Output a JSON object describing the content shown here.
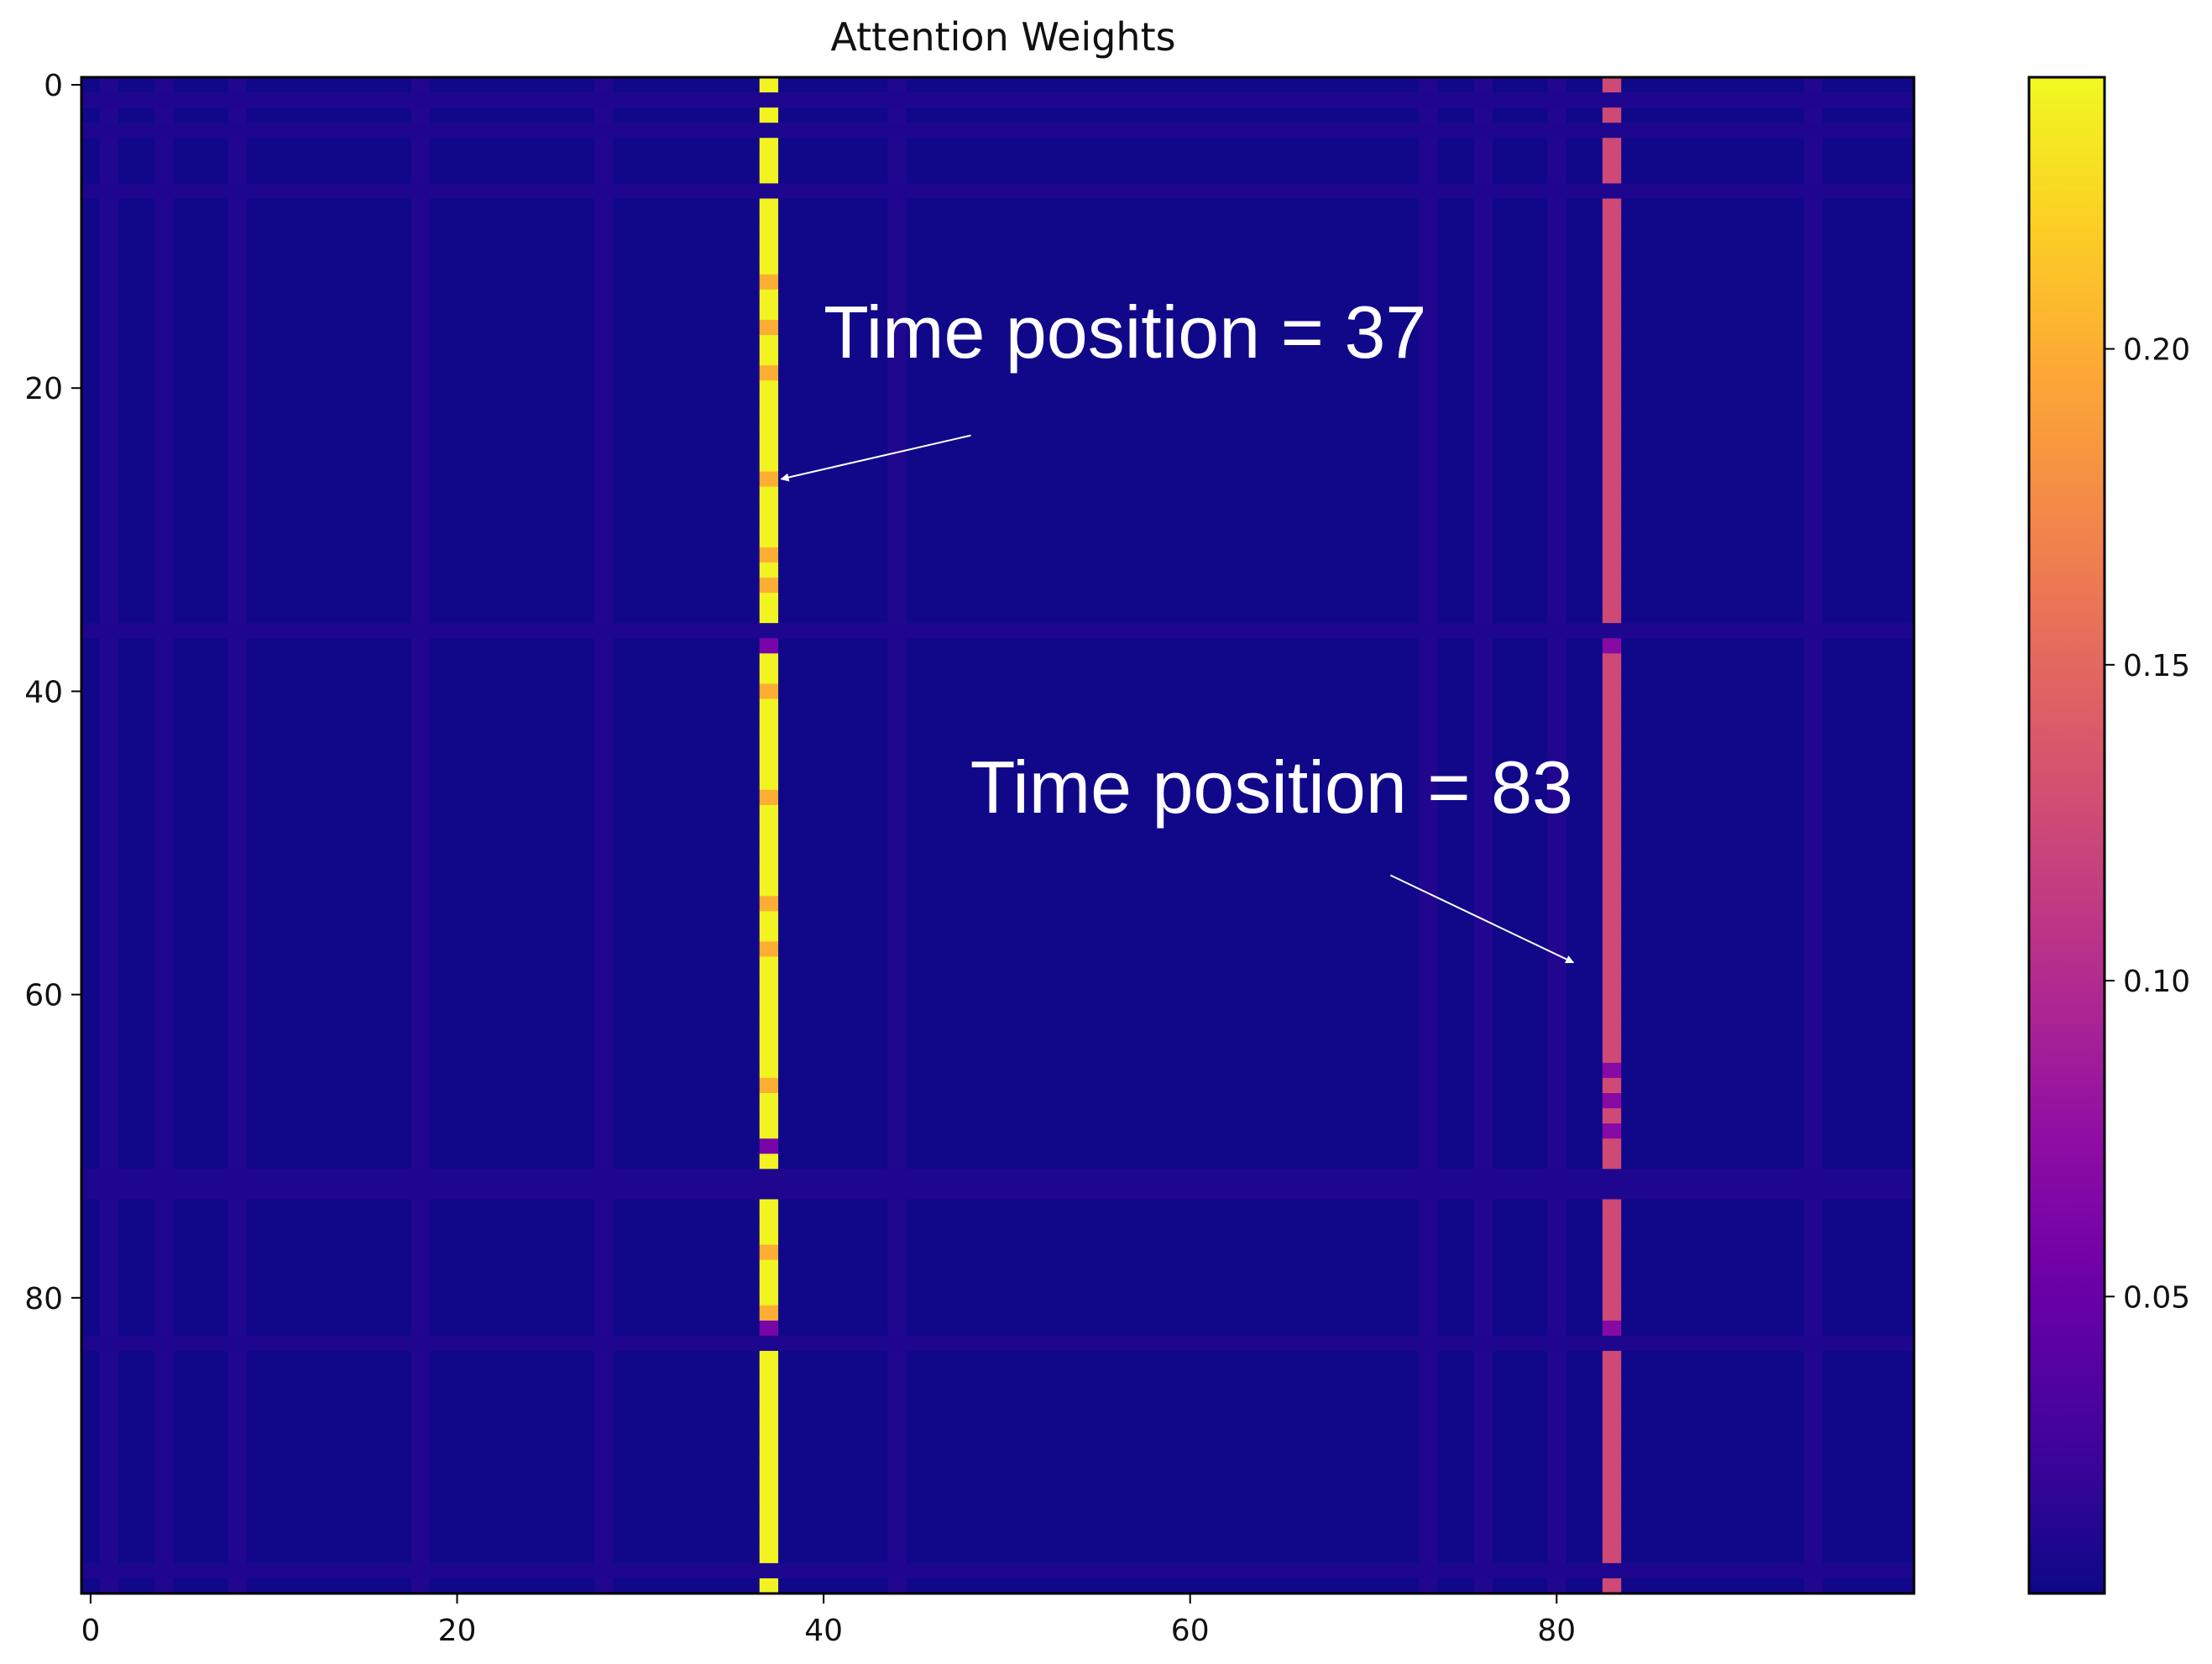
{
  "chart_data": {
    "type": "heatmap",
    "title": "Attention Weights",
    "xlabel": "",
    "ylabel": "",
    "n_rows": 100,
    "n_cols": 100,
    "xlim": [
      0,
      99
    ],
    "ylim": [
      99,
      0
    ],
    "x_ticks": [
      0,
      20,
      40,
      60,
      80
    ],
    "y_ticks": [
      0,
      20,
      40,
      60,
      80
    ],
    "colormap": "plasma",
    "colorbar": {
      "min": 0.003,
      "max": 0.243,
      "ticks": [
        0.05,
        0.1,
        0.15,
        0.2
      ],
      "tick_labels": [
        "0.05",
        "0.10",
        "0.15",
        "0.20"
      ]
    },
    "background_value": 0.005,
    "highlight_columns": [
      {
        "col": 37,
        "typical_value": 0.24,
        "low_rows": [
          37,
          70,
          82
        ],
        "low_value": 0.06,
        "gap_rows": [
          1,
          3,
          7,
          36,
          72,
          73,
          83,
          98
        ],
        "mid_rows": [
          13,
          16,
          19,
          26,
          31,
          33,
          40,
          47,
          54,
          57,
          66,
          77,
          81
        ],
        "mid_value": 0.2
      },
      {
        "col": 83,
        "typical_value": 0.125,
        "low_rows": [
          37,
          65,
          67,
          69,
          82
        ],
        "low_value": 0.07,
        "gap_rows": [
          1,
          3,
          7,
          36,
          72,
          73,
          83,
          98
        ],
        "mid_rows": [],
        "mid_value": 0.12
      }
    ],
    "faint_columns": [
      1,
      4,
      8,
      18,
      28,
      44,
      73,
      76,
      80,
      94
    ],
    "faint_rows": [
      1,
      3,
      7,
      36,
      72,
      73,
      83,
      98
    ],
    "annotations": [
      {
        "text": "Time position = 37",
        "target": [
          38,
          26
        ],
        "text_at": [
          40,
          18
        ]
      },
      {
        "text": "Time position = 83",
        "target": [
          81,
          58
        ],
        "text_at": [
          48,
          48
        ]
      }
    ],
    "grid": false
  }
}
